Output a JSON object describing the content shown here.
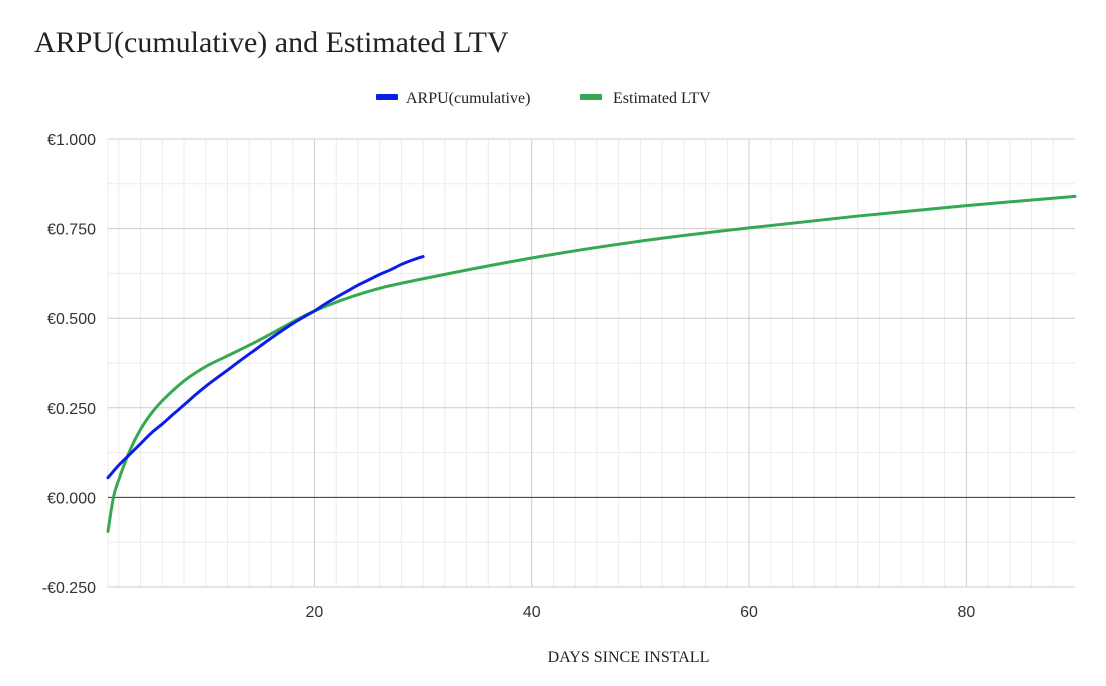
{
  "chart_data": {
    "type": "line",
    "title": "ARPU(cumulative) and Estimated LTV",
    "xlabel": "DAYS SINCE INSTALL",
    "ylabel": "",
    "xlim": [
      1,
      90
    ],
    "ylim": [
      -0.25,
      1.0
    ],
    "x_ticks": [
      20,
      40,
      60,
      80
    ],
    "x_tick_labels": [
      "20",
      "40",
      "60",
      "80"
    ],
    "y_ticks": [
      -0.25,
      0,
      0.25,
      0.5,
      0.75,
      1.0
    ],
    "y_tick_labels": [
      "-€0.250",
      "€0.000",
      "€0.250",
      "€0.500",
      "€0.750",
      "€1.000"
    ],
    "grid": true,
    "legend_position": "top-center",
    "series": [
      {
        "name": "ARPU(cumulative)",
        "color": "#0a1ee6",
        "x": [
          1,
          2,
          3,
          4,
          5,
          6,
          7,
          8,
          9,
          10,
          11,
          12,
          13,
          14,
          15,
          16,
          17,
          18,
          19,
          20,
          21,
          22,
          23,
          24,
          25,
          26,
          27,
          28,
          29,
          30
        ],
        "y": [
          0.055,
          0.09,
          0.12,
          0.15,
          0.18,
          0.205,
          0.232,
          0.258,
          0.285,
          0.31,
          0.333,
          0.355,
          0.378,
          0.4,
          0.422,
          0.444,
          0.465,
          0.485,
          0.503,
          0.52,
          0.54,
          0.558,
          0.575,
          0.592,
          0.607,
          0.622,
          0.635,
          0.65,
          0.662,
          0.672
        ]
      },
      {
        "name": "Estimated LTV",
        "color": "#34a853",
        "x": [
          1,
          1.5,
          2,
          3,
          4,
          5,
          6,
          8,
          10,
          12,
          15,
          20,
          25,
          30,
          40,
          50,
          60,
          70,
          80,
          90
        ],
        "y": [
          -0.095,
          0.0,
          0.05,
          0.13,
          0.19,
          0.235,
          0.27,
          0.325,
          0.365,
          0.395,
          0.44,
          0.52,
          0.575,
          0.61,
          0.668,
          0.715,
          0.752,
          0.785,
          0.814,
          0.84
        ]
      }
    ]
  }
}
